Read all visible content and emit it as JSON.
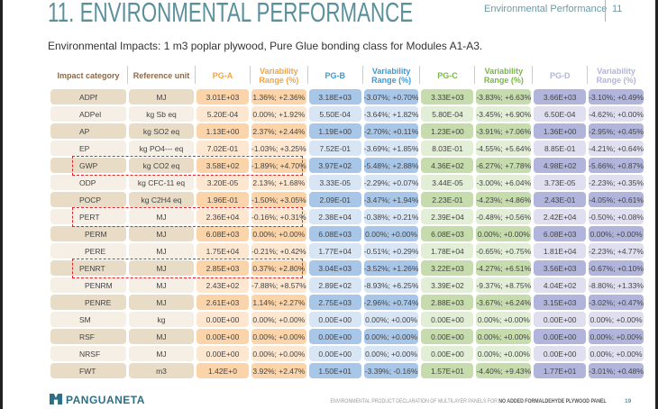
{
  "header": {
    "title": "11. ENVIRONMENTAL PERFORMANCE",
    "section": "Environmental Performance",
    "section_number": "11"
  },
  "subtitle": "Environmental Impacts: 1 m3 poplar plywood, Pure Glue bonding class for Modules A1-A3.",
  "columns": [
    "Impact category",
    "Reference unit",
    "PG-A",
    "Variability Range (%)",
    "PG-B",
    "Variability Range (%)",
    "PG-C",
    "Variability Range (%)",
    "PG-D",
    "Variability Range (%)"
  ],
  "colors": {
    "pg_a": "#f4a340",
    "pg_b": "#3a9ad9",
    "pg_c": "#7ab648",
    "pg_d": "#b0b4dc",
    "category": "#8a6a4a",
    "highlight": "#e0262b"
  },
  "rows": [
    [
      "ADPf",
      "MJ",
      "3.01E+03",
      "1.36%; +2.36%",
      "3.18E+03",
      "-3.07%; +0.70%",
      "3.33E+03",
      "-3.83%; +6.63%",
      "3.66E+03",
      "-3.10%; +0.49%"
    ],
    [
      "ADPel",
      "kg Sb eq",
      "5.20E-04",
      "0.00%; +1.92%",
      "5.50E-04",
      "-3.64%; +1.82%",
      "5.80E-04",
      "-3.45%; +6.90%",
      "6.50E-04",
      "-4.62%; +0.00%"
    ],
    [
      "AP",
      "kg SO2 eq",
      "1.13E+00",
      "2.37%; +2.44%",
      "1.19E+00",
      "-2.70%; +0.11%",
      "1.23E+00",
      "-3.91%; +7.06%",
      "1.36E+00",
      "-2.95%; +0.45%"
    ],
    [
      "EP",
      "kg PO4--- eq",
      "7.02E-01",
      "-1.03%; +3.25%",
      "7.52E-01",
      "-3.69%; +1.85%",
      "8.03E-01",
      "-4.55%; +5.64%",
      "8.85E-01",
      "-4.21%; +0.64%"
    ],
    [
      "GWP",
      "kg CO2 eq",
      "3.58E+02",
      "-1.89%; +4.70%",
      "3.97E+02",
      "-5.48%; +2.88%",
      "4.36E+02",
      "-6.27%; +7.78%",
      "4.98E+02",
      "-5.66%; +0.87%"
    ],
    [
      "ODP",
      "kg CFC-11 eq",
      "3.20E-05",
      "2.13%; +1.68%",
      "3.33E-05",
      "-2.29%; +0.07%",
      "3.44E-05",
      "-3.00%; +6.04%",
      "3.73E-05",
      "-2.23%; +0.35%"
    ],
    [
      "POCP",
      "kg C2H4 eq",
      "1.96E-01",
      "-1.50%; +3.05%",
      "2.09E-01",
      "-3.47%; +1.94%",
      "2.23E-01",
      "-4.23%; +4.86%",
      "2.43E-01",
      "-4.05%; +0.61%"
    ],
    [
      "PERT",
      "MJ",
      "2.36E+04",
      "-0.16%; +0.31%",
      "2.38E+04",
      "-0.38%; +0.21%",
      "2.39E+04",
      "-0.48%; +0.56%",
      "2.42E+04",
      "-0.50%; +0.08%"
    ],
    [
      "PERM",
      "MJ",
      "6.08E+03",
      "0.00%; +0.00%",
      "6.08E+03",
      "0.00%; +0.00%",
      "6.08E+03",
      "0.00%; +0.00%",
      "6.08E+03",
      "0.00%; +0.00%"
    ],
    [
      "PERE",
      "MJ",
      "1.75E+04",
      "-0.21%; +0.42%",
      "1.77E+04",
      "-0.51%; +0.29%",
      "1.78E+04",
      "-0.65%; +0.75%",
      "1.81E+04",
      "-2.23%; +4.77%"
    ],
    [
      "PENRT",
      "MJ",
      "2.85E+03",
      "0.37%; +2.80%",
      "3.04E+03",
      "-3.52%; +1.26%",
      "3.22E+03",
      "-4.27%; +6.51%",
      "3.56E+03",
      "-0.67%; +0.10%"
    ],
    [
      "PENRM",
      "MJ",
      "2.43E+02",
      "-7.88%; +8.57%",
      "2.89E+02",
      "-8.93%; +6.25%",
      "3.39E+02",
      "-9.37%; +8.75%",
      "4.04E+02",
      "-8.80%; +1.33%"
    ],
    [
      "PENRE",
      "MJ",
      "2.61E+03",
      "1.14%; +2.27%",
      "2.75E+03",
      "-2.96%; +0.74%",
      "2.88E+03",
      "-3.67%; +6.24%",
      "3.15E+03",
      "-3.02%; +0.47%"
    ],
    [
      "SM",
      "kg",
      "0.00E+00",
      "0.00%; +0.00%",
      "0.00E+00",
      "0.00%; +0.00%",
      "0.00E+00",
      "0.00%; +0.00%",
      "0.00E+00",
      "0.00%; +0.00%"
    ],
    [
      "RSF",
      "MJ",
      "0.00E+00",
      "0.00%; +0.00%",
      "0.00E+00",
      "0.00%; +0.00%",
      "0.00E+00",
      "0.00%; +0.00%",
      "0.00E+00",
      "0.00%; +0.00%"
    ],
    [
      "NRSF",
      "MJ",
      "0.00E+00",
      "0.00%; +0.00%",
      "0.00E+00",
      "0.00%; +0.00%",
      "0.00E+00",
      "0.00%; +0.00%",
      "0.00E+00",
      "0.00%; +0.00%"
    ],
    [
      "FWT",
      "m3",
      "1.42E+0",
      "3.92%; +2.47%",
      "1.50E+01",
      "-3.39%; -0.16%",
      "1.57E+01",
      "-4.40%; +9.43%",
      "1.77E+01",
      "-3.01%; +0.48%"
    ]
  ],
  "indented_rows": [
    "PERM",
    "PERE",
    "PENRM",
    "PENRE"
  ],
  "highlighted_rows": [
    "GWP",
    "PERT",
    "PENRT"
  ],
  "footer": {
    "logo": "PANGUANETA",
    "text_prefix": "ENVIRONMENTAL PRODUCT DECLARATION OF MULTILAYER PANELS FOR ",
    "text_bold": "NO ADDED FORMALDEHYDE PLYWOOD PANEL",
    "page": "19"
  }
}
